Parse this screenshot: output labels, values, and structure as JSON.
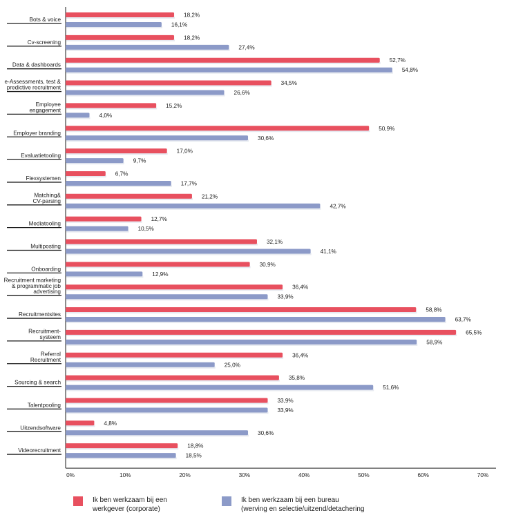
{
  "chart_data": {
    "type": "bar",
    "orientation": "horizontal",
    "categories": [
      [
        "Bots & voice"
      ],
      [
        "Cv-screening"
      ],
      [
        "Data & dashboards"
      ],
      [
        "e-Assessments, test &",
        "predictive recruitment"
      ],
      [
        "Employee",
        "engagement"
      ],
      [
        "Employer branding"
      ],
      [
        "Evaluatietooling"
      ],
      [
        "Flexsystemen"
      ],
      [
        "Matching&",
        "CV-parsing"
      ],
      [
        "Mediatooling"
      ],
      [
        "Multiposting"
      ],
      [
        "Onboarding"
      ],
      [
        "Recruitment marketing",
        "& programmatic job",
        "advertising"
      ],
      [
        "Recruitmentsites"
      ],
      [
        "Recruitment-",
        "systeem"
      ],
      [
        "Referral",
        "Recruitment"
      ],
      [
        "Sourcing & search"
      ],
      [
        "Talentpooling"
      ],
      [
        "Uitzendsoftware"
      ],
      [
        "Videorecruitment"
      ]
    ],
    "series": [
      {
        "name": [
          "Ik ben werkzaam bij een",
          "werkgever (corporate)"
        ],
        "color": "#e8505f",
        "values": [
          18.2,
          18.2,
          52.7,
          34.5,
          15.2,
          50.9,
          17.0,
          6.7,
          21.2,
          12.7,
          32.1,
          30.9,
          36.4,
          58.8,
          65.5,
          36.4,
          35.8,
          33.9,
          4.8,
          18.8
        ],
        "labels": [
          "18,2%",
          "18,2%",
          "52,7%",
          "34,5%",
          "15,2%",
          "50,9%",
          "17,0%",
          "6,7%",
          "21,2%",
          "12,7%",
          "32,1%",
          "30,9%",
          "36,4%",
          "58,8%",
          "65,5%",
          "36,4%",
          "35,8%",
          "33,9%",
          "4,8%",
          "18,8%"
        ]
      },
      {
        "name": [
          "Ik ben werkzaam bij een bureau",
          "(werving en selectie/uitzend/detachering"
        ],
        "color": "#8c9ac8",
        "values": [
          16.1,
          27.4,
          54.8,
          26.6,
          4.0,
          30.6,
          9.7,
          17.7,
          42.7,
          10.5,
          41.1,
          12.9,
          33.9,
          63.7,
          58.9,
          25.0,
          51.6,
          33.9,
          30.6,
          18.5
        ],
        "labels": [
          "16,1%",
          "27,4%",
          "54,8%",
          "26,6%",
          "4,0%",
          "30,6%",
          "9,7%",
          "17,7%",
          "42,7%",
          "10,5%",
          "41,1%",
          "12,9%",
          "33,9%",
          "63,7%",
          "58,9%",
          "25,0%",
          "51,6%",
          "33,9%",
          "30,6%",
          "18,5%"
        ]
      }
    ],
    "xlim": [
      0,
      70
    ],
    "xticks": [
      0,
      10,
      20,
      30,
      40,
      50,
      60,
      70
    ],
    "xtick_labels": [
      "0%",
      "10%",
      "20%",
      "30%",
      "40%",
      "50%",
      "60%",
      "70%"
    ],
    "grid": false,
    "legend_position": "bottom"
  }
}
